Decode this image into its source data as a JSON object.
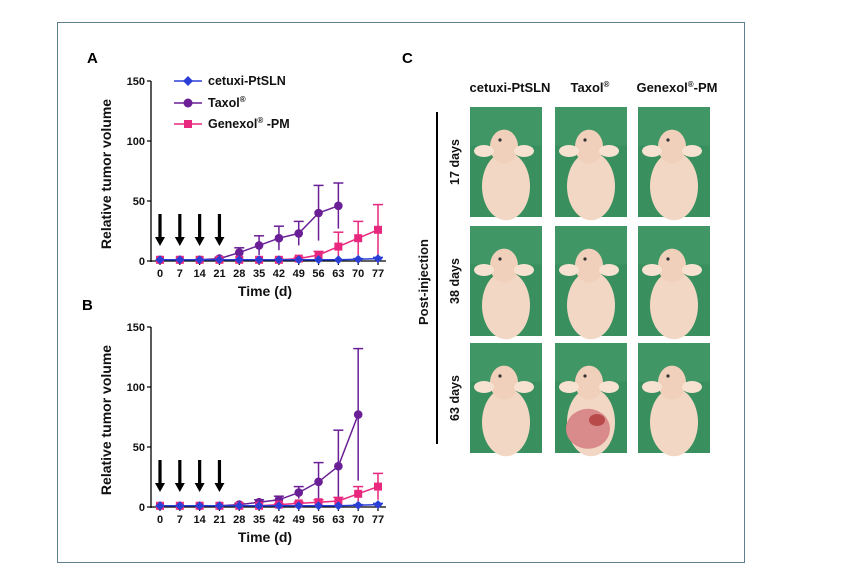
{
  "panels": {
    "a": "A",
    "b": "B",
    "c": "C"
  },
  "colors": {
    "cetuxi": "#2b3fd6",
    "taxol": "#6a1f96",
    "genexol": "#e8287e",
    "photo_bg": "#3a8f5f",
    "mouse": "#f2d7c4"
  },
  "legend": {
    "cetuxi": "cetuxi-PtSLN",
    "taxol": "Taxol",
    "taxol_sup": "®",
    "genexol": "Genexol",
    "genexol_sup": "®",
    "genexol_suffix": " -PM"
  },
  "chart_data": [
    {
      "panel": "A",
      "type": "line",
      "xlabel": "Time (d)",
      "ylabel": "Relative tumor volume",
      "x": [
        0,
        7,
        14,
        21,
        28,
        35,
        42,
        49,
        56,
        63,
        70,
        77
      ],
      "x_tick_labels": [
        "0",
        "7",
        "14",
        "21",
        "28",
        "35",
        "42",
        "49",
        "56",
        "63",
        "70",
        "77"
      ],
      "ylim": [
        0,
        150
      ],
      "y_ticks": [
        0,
        50,
        100,
        150
      ],
      "injection_days": [
        0,
        7,
        14,
        21
      ],
      "series": [
        {
          "name": "cetuxi-PtSLN",
          "color": "#2b3fd6",
          "marker": "diamond",
          "x": [
            0,
            7,
            14,
            21,
            28,
            35,
            42,
            49,
            56,
            63,
            70,
            77
          ],
          "values": [
            1,
            1,
            1,
            1,
            1,
            1,
            1,
            1,
            1,
            1,
            1.5,
            2
          ],
          "errors": [
            0,
            0,
            0,
            0,
            0,
            0,
            0,
            0,
            0,
            0,
            0.5,
            1
          ]
        },
        {
          "name": "Taxol",
          "color": "#6a1f96",
          "marker": "circle",
          "x": [
            0,
            7,
            14,
            21,
            28,
            35,
            42,
            49,
            56,
            63
          ],
          "values": [
            1,
            1,
            1,
            2,
            7,
            13,
            19,
            23,
            40,
            46
          ],
          "errors": [
            0,
            0,
            0,
            1,
            4,
            8,
            10,
            10,
            23,
            19
          ]
        },
        {
          "name": "Genexol-PM",
          "color": "#e8287e",
          "marker": "square",
          "x": [
            0,
            7,
            14,
            21,
            28,
            35,
            42,
            49,
            56,
            63,
            70,
            77
          ],
          "values": [
            1,
            1,
            1,
            1,
            1,
            1,
            1,
            2,
            5,
            12,
            19,
            26
          ],
          "errors": [
            0,
            0,
            0,
            0,
            0,
            0,
            0.5,
            1,
            3,
            12,
            14,
            21
          ]
        }
      ]
    },
    {
      "panel": "B",
      "type": "line",
      "xlabel": "Time (d)",
      "ylabel": "Relative tumor volume",
      "x": [
        0,
        7,
        14,
        21,
        28,
        35,
        42,
        49,
        56,
        63,
        70,
        77
      ],
      "x_tick_labels": [
        "0",
        "7",
        "14",
        "21",
        "28",
        "35",
        "42",
        "49",
        "56",
        "63",
        "70",
        "77"
      ],
      "ylim": [
        0,
        150
      ],
      "y_ticks": [
        0,
        50,
        100,
        150
      ],
      "injection_days": [
        0,
        7,
        14,
        21
      ],
      "series": [
        {
          "name": "cetuxi-PtSLN",
          "color": "#2b3fd6",
          "marker": "diamond",
          "x": [
            0,
            7,
            14,
            21,
            28,
            35,
            42,
            49,
            56,
            63,
            70,
            77
          ],
          "values": [
            1,
            1,
            1,
            1,
            1,
            1,
            1,
            1,
            1,
            1,
            1.5,
            2
          ],
          "errors": [
            0,
            0,
            0,
            0,
            0,
            0,
            0,
            0,
            0,
            0,
            0.5,
            1
          ]
        },
        {
          "name": "Taxol",
          "color": "#6a1f96",
          "marker": "circle",
          "x": [
            0,
            7,
            14,
            21,
            28,
            35,
            42,
            49,
            56,
            63,
            70
          ],
          "values": [
            1,
            1,
            1,
            1,
            2,
            4,
            6,
            12,
            21,
            34,
            77
          ],
          "errors": [
            0,
            0,
            0,
            0,
            1,
            2,
            3,
            5,
            16,
            30,
            55
          ]
        },
        {
          "name": "Genexol-PM",
          "color": "#e8287e",
          "marker": "square",
          "x": [
            0,
            7,
            14,
            21,
            28,
            35,
            42,
            49,
            56,
            63,
            70,
            77
          ],
          "values": [
            1,
            1,
            1,
            1,
            1,
            1,
            2,
            3,
            4,
            5,
            11,
            17
          ],
          "errors": [
            0,
            0,
            0,
            0,
            0,
            0,
            0.5,
            1,
            2,
            3,
            6,
            11
          ]
        }
      ]
    }
  ],
  "photo_grid": {
    "columns": [
      {
        "name": "cetuxi-PtSLN",
        "sup": "",
        "suffix": ""
      },
      {
        "name": "Taxol",
        "sup": "®",
        "suffix": ""
      },
      {
        "name": "Genexol",
        "sup": "®",
        "suffix": "-PM"
      }
    ],
    "rows": [
      "17 days",
      "38 days",
      "63 days"
    ],
    "side_label": "Post-injection"
  }
}
